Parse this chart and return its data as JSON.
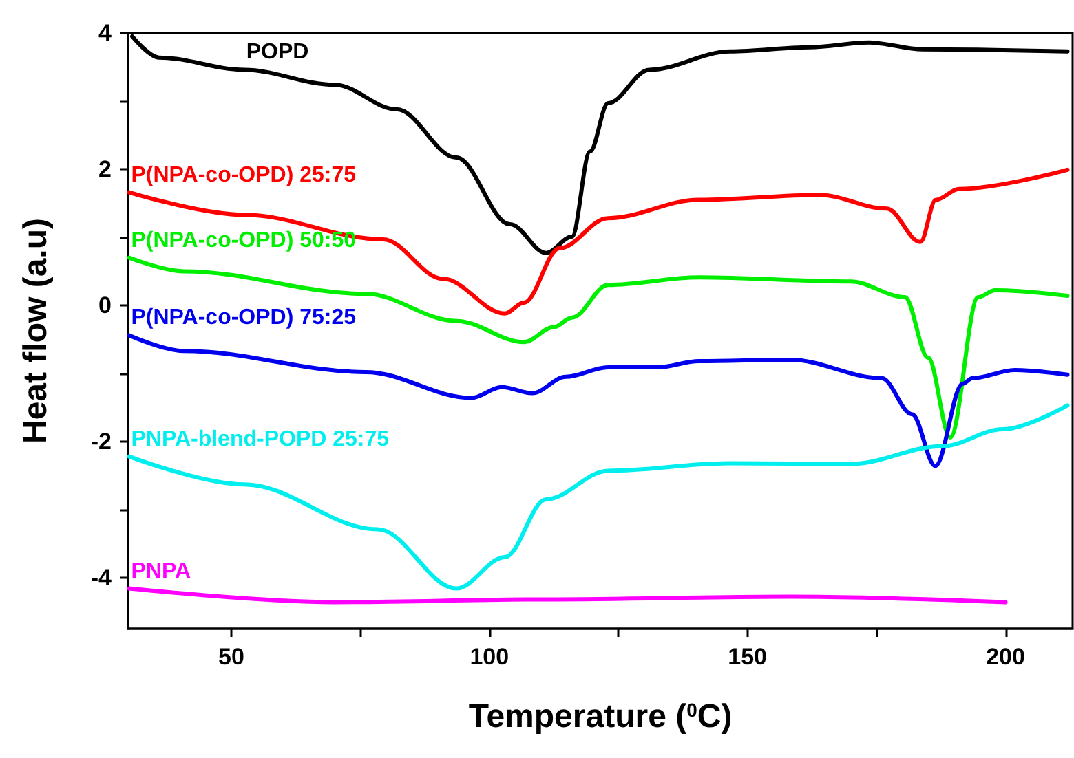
{
  "chart_data": {
    "type": "line",
    "xlabel": "Temperature ($^{0}$C)",
    "ylabel": "Heat flow (a.u)",
    "xlim": [
      30,
      213
    ],
    "xticks": [
      50,
      {
        "value": 75,
        "label": null
      },
      100,
      {
        "value": 125,
        "label": null
      },
      150,
      {
        "value": 175,
        "label": null
      },
      200
    ],
    "ylim": [
      -4.75,
      4
    ],
    "yticks": [
      -4,
      {
        "value": -3,
        "label": null
      },
      -2,
      {
        "value": -1,
        "label": null
      },
      0,
      {
        "value": 1,
        "label": null
      },
      2,
      {
        "value": 3,
        "label": null
      },
      4
    ],
    "grid": false,
    "legend": false,
    "marker": "none",
    "line_style": "solid",
    "series": [
      {
        "name": "POPD",
        "color": "#000000",
        "x": [
          30.8,
          36,
          52.5,
          70,
          82,
          93.6,
          104,
          111,
          116,
          119.5,
          123,
          131,
          146.7,
          162,
          173.6,
          184,
          212
        ],
        "values": [
          3.95,
          3.64,
          3.46,
          3.24,
          2.88,
          2.17,
          1.19,
          0.77,
          1.01,
          2.26,
          2.97,
          3.46,
          3.73,
          3.79,
          3.86,
          3.76,
          3.73
        ]
      },
      {
        "name": "P(NPA-co-OPD) 25:75",
        "color": "#ff0000",
        "x": [
          30.2,
          52.5,
          79.4,
          91,
          103,
          106.7,
          113.6,
          123,
          140.6,
          164,
          177,
          183.5,
          186.5,
          191,
          212
        ],
        "values": [
          1.66,
          1.33,
          0.97,
          0.39,
          -0.12,
          0.04,
          0.84,
          1.28,
          1.55,
          1.62,
          1.42,
          0.93,
          1.55,
          1.71,
          1.99
        ]
      },
      {
        "name": "P(NPA-co-OPD) 50:50",
        "color": "#00ee00",
        "x": [
          30.2,
          40.8,
          76,
          93.6,
          106.7,
          112.5,
          116,
          123,
          140.6,
          170,
          180.5,
          185,
          189.3,
          194.7,
          198,
          212
        ],
        "values": [
          0.7,
          0.5,
          0.17,
          -0.23,
          -0.54,
          -0.32,
          -0.18,
          0.3,
          0.41,
          0.35,
          0.12,
          -0.77,
          -1.94,
          0.12,
          0.22,
          0.14
        ]
      },
      {
        "name": "P(NPA-co-OPD) 75:25",
        "color": "#0000ee",
        "x": [
          30.2,
          40.8,
          76,
          96.5,
          102.4,
          108.3,
          114.8,
          123,
          132.6,
          140.6,
          158.3,
          176,
          181.9,
          186.4,
          191.7,
          193.6,
          201.8,
          212
        ],
        "values": [
          -0.44,
          -0.67,
          -0.98,
          -1.36,
          -1.2,
          -1.29,
          -1.05,
          -0.91,
          -0.91,
          -0.82,
          -0.8,
          -1.07,
          -1.6,
          -2.36,
          -1.15,
          -1.07,
          -0.95,
          -1.02
        ]
      },
      {
        "name": "PNPA-blend-POPD 25:75",
        "color": "#00eeee",
        "x": [
          30.2,
          52.5,
          78.4,
          93.6,
          103,
          111,
          123,
          146.5,
          170,
          187.7,
          199.5,
          212
        ],
        "values": [
          -2.22,
          -2.63,
          -3.29,
          -4.16,
          -3.7,
          -2.85,
          -2.43,
          -2.32,
          -2.33,
          -2.07,
          -1.82,
          -1.47
        ]
      },
      {
        "name": "PNPA",
        "color": "#ff00ff",
        "x": [
          30.2,
          70,
          111,
          158.3,
          200
        ],
        "values": [
          -4.16,
          -4.36,
          -4.32,
          -4.28,
          -4.36
        ]
      }
    ]
  }
}
